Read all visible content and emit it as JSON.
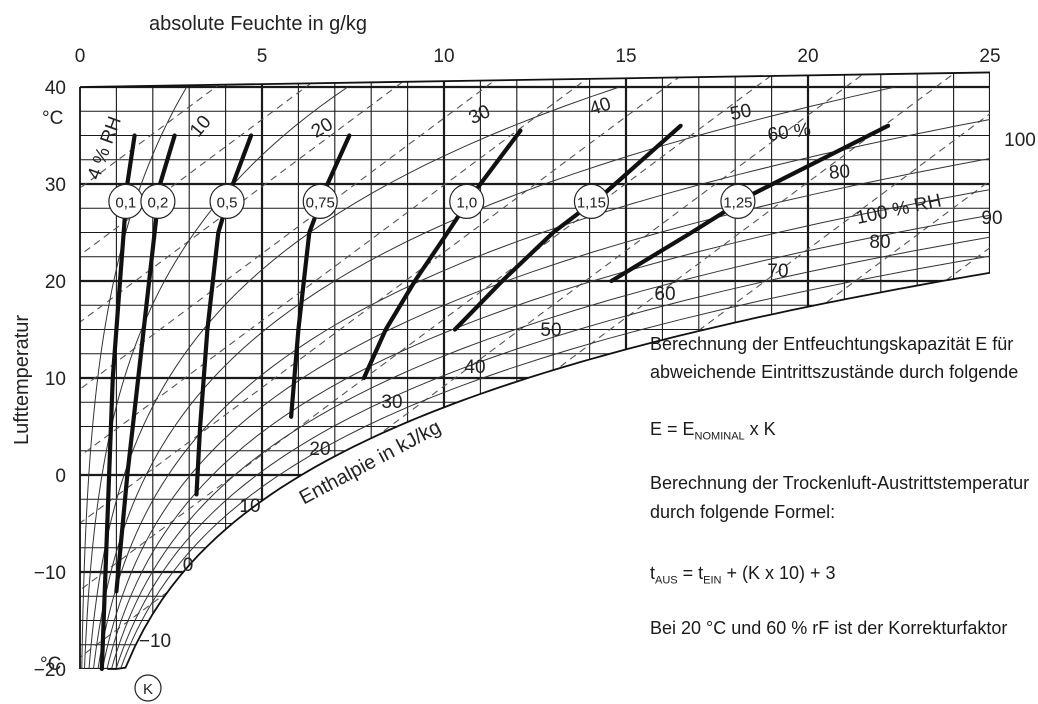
{
  "chart_data": {
    "type": "line",
    "chart_kind": "psychrometric chart (h-x diagram) with correction factor curves",
    "title": "",
    "top_axis_label": "absolute Feuchte in g/kg",
    "y_axis_label": "Lufttemperatur",
    "y_unit": "°C",
    "bottom_unit": "°C",
    "enthalpy_label": "Enthalpie in kJ/kg",
    "x_ticks": [
      "0",
      "5",
      "10",
      "15",
      "20",
      "25"
    ],
    "y_ticks": [
      "40",
      "30",
      "20",
      "10",
      "0",
      "−10",
      "−20"
    ],
    "xlim": [
      0,
      25
    ],
    "ylim": [
      -20,
      40
    ],
    "grid": "on",
    "relative_humidity_labels": [
      {
        "rh": 4,
        "text": "4 % RH"
      },
      {
        "rh": 10,
        "text": "10"
      },
      {
        "rh": 20,
        "text": "20"
      },
      {
        "rh": 30,
        "text": "30"
      },
      {
        "rh": 40,
        "text": "40"
      },
      {
        "rh": 50,
        "text": "50"
      },
      {
        "rh": 60,
        "text": "60 %"
      },
      {
        "rh": 80,
        "text": "80"
      },
      {
        "rh": 100,
        "text": "100 % RH"
      }
    ],
    "enthalpy_labels": [
      "−10",
      "0",
      "10",
      "20",
      "30",
      "40",
      "50",
      "60",
      "70",
      "80",
      "90",
      "100"
    ],
    "correction_curves": [
      {
        "label": "0,1",
        "points": [
          [
            0.6,
            -20
          ],
          [
            0.7,
            -10
          ],
          [
            0.8,
            0
          ],
          [
            0.9,
            10
          ],
          [
            1.1,
            20
          ],
          [
            1.3,
            30
          ],
          [
            1.5,
            35
          ]
        ]
      },
      {
        "label": "0,2",
        "points": [
          [
            1.0,
            -12
          ],
          [
            1.3,
            0
          ],
          [
            1.6,
            10
          ],
          [
            1.9,
            20
          ],
          [
            2.2,
            30
          ],
          [
            2.6,
            35
          ]
        ]
      },
      {
        "label": "0,5",
        "points": [
          [
            3.2,
            -2
          ],
          [
            3.3,
            5
          ],
          [
            3.5,
            15
          ],
          [
            3.8,
            25
          ],
          [
            4.2,
            30
          ],
          [
            4.7,
            35
          ]
        ]
      },
      {
        "label": "0,75",
        "points": [
          [
            5.8,
            6
          ],
          [
            6.0,
            15
          ],
          [
            6.3,
            25
          ],
          [
            6.8,
            30
          ],
          [
            7.4,
            35
          ]
        ]
      },
      {
        "label": "1,0",
        "points": [
          [
            7.8,
            10
          ],
          [
            8.4,
            15
          ],
          [
            9.2,
            20
          ],
          [
            10.1,
            25
          ],
          [
            10.8,
            29
          ],
          [
            12.1,
            35.5
          ]
        ]
      },
      {
        "label": "1,15",
        "points": [
          [
            10.3,
            15
          ],
          [
            11.6,
            20
          ],
          [
            13.0,
            25
          ],
          [
            14.4,
            29
          ],
          [
            16.5,
            36
          ]
        ]
      },
      {
        "label": "1,25",
        "points": [
          [
            14.6,
            20
          ],
          [
            16.8,
            25
          ],
          [
            18.5,
            29
          ],
          [
            22.2,
            36
          ]
        ]
      }
    ],
    "point_label": "K"
  },
  "notes": {
    "line1": "Berechnung der Entfeuchtungskapazität E für",
    "line2": "abweichende Eintrittszustände durch folgende",
    "formula1_prefix": "E = E",
    "formula1_sub": "NOMINAL",
    "formula1_suffix": " x K",
    "line3": "Berechnung der Trockenluft-Austrittstemperatur",
    "line4": "durch folgende Formel:",
    "formula2_t": "t",
    "formula2_sub1": "AUS",
    "formula2_mid": " =  t",
    "formula2_sub2": "EIN",
    "formula2_suffix": " + (K x 10) + 3",
    "line5": "Bei 20 °C und 60 % rF ist der Korrekturfaktor"
  }
}
